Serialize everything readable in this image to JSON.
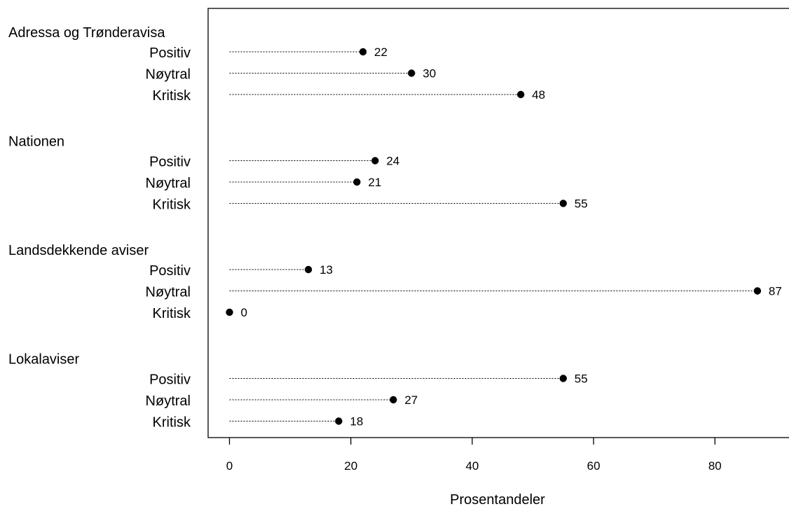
{
  "chart_data": {
    "type": "dot",
    "xlabel": "Prosentandeler",
    "xlim": [
      -3.5,
      92
    ],
    "xticks": [
      0,
      20,
      40,
      60,
      80
    ],
    "grid": false,
    "groups": [
      {
        "name": "Adressa og Trønderavisa",
        "items": [
          {
            "label": "Positiv",
            "value": 22
          },
          {
            "label": "Nøytral",
            "value": 30
          },
          {
            "label": "Kritisk",
            "value": 48
          }
        ]
      },
      {
        "name": "Nationen",
        "items": [
          {
            "label": "Positiv",
            "value": 24
          },
          {
            "label": "Nøytral",
            "value": 21
          },
          {
            "label": "Kritisk",
            "value": 55
          }
        ]
      },
      {
        "name": "Landsdekkende aviser",
        "items": [
          {
            "label": "Positiv",
            "value": 13
          },
          {
            "label": "Nøytral",
            "value": 87
          },
          {
            "label": "Kritisk",
            "value": 0
          }
        ]
      },
      {
        "name": "Lokalaviser",
        "items": [
          {
            "label": "Positiv",
            "value": 55
          },
          {
            "label": "Nøytral",
            "value": 27
          },
          {
            "label": "Kritisk",
            "value": 18
          }
        ]
      }
    ]
  }
}
